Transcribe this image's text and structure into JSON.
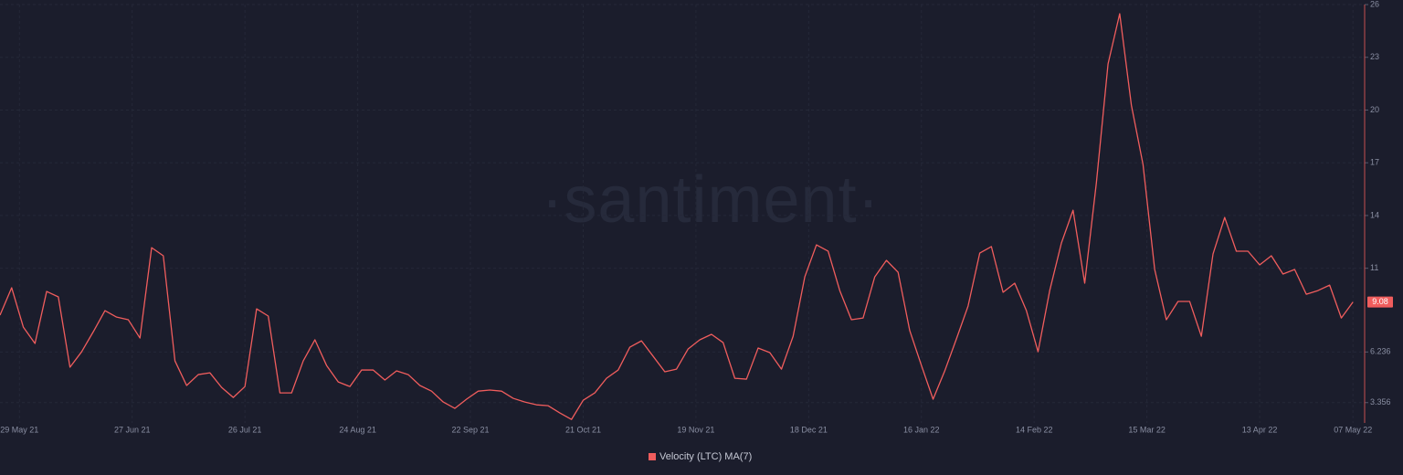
{
  "chart_data": {
    "type": "line",
    "watermark": "·santiment·",
    "x": [
      "24 May 21",
      "27 May 21",
      "30 May 21",
      "02 Jun 21",
      "05 Jun 21",
      "08 Jun 21",
      "11 Jun 21",
      "14 Jun 21",
      "17 Jun 21",
      "20 Jun 21",
      "23 Jun 21",
      "26 Jun 21",
      "29 Jun 21",
      "02 Jul 21",
      "05 Jul 21",
      "08 Jul 21",
      "11 Jul 21",
      "14 Jul 21",
      "17 Jul 21",
      "20 Jul 21",
      "23 Jul 21",
      "26 Jul 21",
      "29 Jul 21",
      "01 Aug 21",
      "04 Aug 21",
      "07 Aug 21",
      "10 Aug 21",
      "13 Aug 21",
      "16 Aug 21",
      "19 Aug 21",
      "22 Aug 21",
      "25 Aug 21",
      "28 Aug 21",
      "31 Aug 21",
      "03 Sep 21",
      "06 Sep 21",
      "09 Sep 21",
      "12 Sep 21",
      "15 Sep 21",
      "18 Sep 21",
      "21 Sep 21",
      "24 Sep 21",
      "27 Sep 21",
      "30 Sep 21",
      "03 Oct 21",
      "06 Oct 21",
      "09 Oct 21",
      "12 Oct 21",
      "15 Oct 21",
      "18 Oct 21",
      "21 Oct 21",
      "24 Oct 21",
      "27 Oct 21",
      "30 Oct 21",
      "02 Nov 21",
      "05 Nov 21",
      "08 Nov 21",
      "11 Nov 21",
      "14 Nov 21",
      "17 Nov 21",
      "20 Nov 21",
      "23 Nov 21",
      "26 Nov 21",
      "29 Nov 21",
      "02 Dec 21",
      "05 Dec 21",
      "08 Dec 21",
      "11 Dec 21",
      "14 Dec 21",
      "17 Dec 21",
      "20 Dec 21",
      "23 Dec 21",
      "26 Dec 21",
      "29 Dec 21",
      "01 Jan 22",
      "04 Jan 22",
      "07 Jan 22",
      "10 Jan 22",
      "13 Jan 22",
      "16 Jan 22",
      "19 Jan 22",
      "22 Jan 22",
      "25 Jan 22",
      "28 Jan 22",
      "31 Jan 22",
      "03 Feb 22",
      "06 Feb 22",
      "09 Feb 22",
      "12 Feb 22",
      "15 Feb 22",
      "18 Feb 22",
      "21 Feb 22",
      "24 Feb 22",
      "27 Feb 22",
      "02 Mar 22",
      "05 Mar 22",
      "08 Mar 22",
      "11 Mar 22",
      "14 Mar 22",
      "17 Mar 22",
      "20 Mar 22",
      "23 Mar 22",
      "26 Mar 22",
      "29 Mar 22",
      "01 Apr 22",
      "04 Apr 22",
      "07 Apr 22",
      "10 Apr 22",
      "13 Apr 22",
      "16 Apr 22",
      "19 Apr 22",
      "22 Apr 22",
      "25 Apr 22",
      "28 Apr 22",
      "01 May 22",
      "04 May 22",
      "07 May 22"
    ],
    "series": [
      {
        "name": "Velocity (LTC) MA(7)",
        "color": "#f05d5d",
        "values": [
          8.33,
          9.89,
          7.65,
          6.72,
          9.68,
          9.37,
          5.37,
          6.25,
          7.39,
          8.59,
          8.22,
          8.07,
          7.03,
          12.17,
          11.71,
          5.73,
          4.33,
          4.95,
          5.05,
          4.22,
          3.65,
          4.27,
          8.69,
          8.28,
          3.91,
          3.91,
          5.73,
          6.93,
          5.47,
          4.53,
          4.27,
          5.21,
          5.21,
          4.64,
          5.16,
          4.95,
          4.33,
          4.01,
          3.39,
          3.03,
          3.55,
          4.01,
          4.07,
          4.01,
          3.6,
          3.39,
          3.23,
          3.18,
          2.77,
          2.4,
          3.49,
          3.91,
          4.74,
          5.21,
          6.51,
          6.87,
          5.99,
          5.11,
          5.26,
          6.41,
          6.93,
          7.24,
          6.77,
          4.74,
          4.69,
          6.46,
          6.2,
          5.26,
          7.13,
          10.51,
          12.33,
          11.97,
          9.73,
          8.07,
          8.17,
          10.51,
          11.45,
          10.77,
          7.45,
          5.47,
          3.55,
          5.16,
          6.98,
          8.85,
          11.86,
          12.23,
          9.63,
          10.15,
          8.59,
          6.25,
          9.73,
          12.43,
          14.3,
          10.15,
          15.86,
          22.62,
          25.48,
          20.28,
          16.9,
          10.93,
          8.07,
          9.11,
          9.11,
          7.13,
          11.81,
          13.89,
          11.97,
          11.97,
          11.19,
          11.71,
          10.67,
          10.93,
          9.52,
          9.73,
          10.04,
          8.17,
          9.08
        ]
      }
    ],
    "xlim": [
      "24 May 21",
      "10 May 22"
    ],
    "xticks": [
      "29 May 21",
      "27 Jun 21",
      "26 Jul 21",
      "24 Aug 21",
      "22 Sep 21",
      "21 Oct 21",
      "19 Nov 21",
      "18 Dec 21",
      "16 Jan 22",
      "14 Feb 22",
      "15 Mar 22",
      "13 Apr 22",
      "07 May 22"
    ],
    "ylim": [
      2.2,
      26
    ],
    "yticks": [
      3.356,
      6.236,
      11,
      14,
      17,
      20,
      23,
      26
    ],
    "grid": true,
    "y_axis_side": "right",
    "legend": "bottom"
  }
}
